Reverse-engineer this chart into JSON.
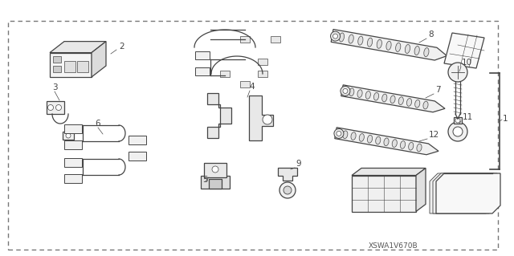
{
  "footnote": "XSWA1V670B",
  "background_color": "#ffffff",
  "border_color": "#777777",
  "line_color": "#444444",
  "label_color": "#222222",
  "fig_width": 6.4,
  "fig_height": 3.19,
  "dpi": 100
}
